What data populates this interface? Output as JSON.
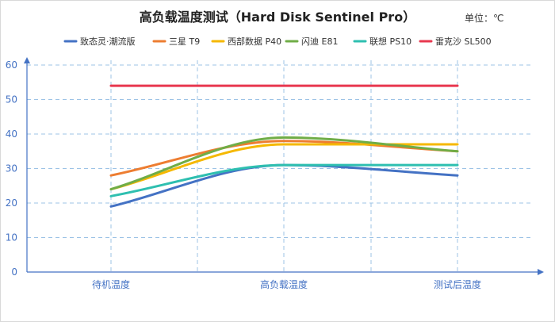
{
  "chart_data": {
    "type": "line",
    "title": "高负载温度测试（Hard Disk Sentinel Pro）",
    "unit_label": "单位：℃",
    "categories": [
      "待机温度",
      "高负载温度",
      "测试后温度"
    ],
    "ylim": [
      0,
      60
    ],
    "yticks": [
      0,
      10,
      20,
      30,
      40,
      50,
      60
    ],
    "grid": true,
    "legend_position": "top",
    "smooth": true,
    "series": [
      {
        "name": "致态灵·潮流版",
        "values": [
          19,
          31,
          28
        ],
        "color": "#4472c4"
      },
      {
        "name": "三星 T9",
        "values": [
          28,
          38,
          35
        ],
        "color": "#ed7d31"
      },
      {
        "name": "西部数据 P40",
        "values": [
          24,
          37,
          37
        ],
        "color": "#f5b800"
      },
      {
        "name": "闪迪 E81",
        "values": [
          24,
          39,
          35
        ],
        "color": "#70ad47"
      },
      {
        "name": "联想 PS10",
        "values": [
          22,
          31,
          31
        ],
        "color": "#2ebfb0"
      },
      {
        "name": "雷克沙 SL500",
        "values": [
          54,
          54,
          54
        ],
        "color": "#e8384f"
      }
    ]
  }
}
